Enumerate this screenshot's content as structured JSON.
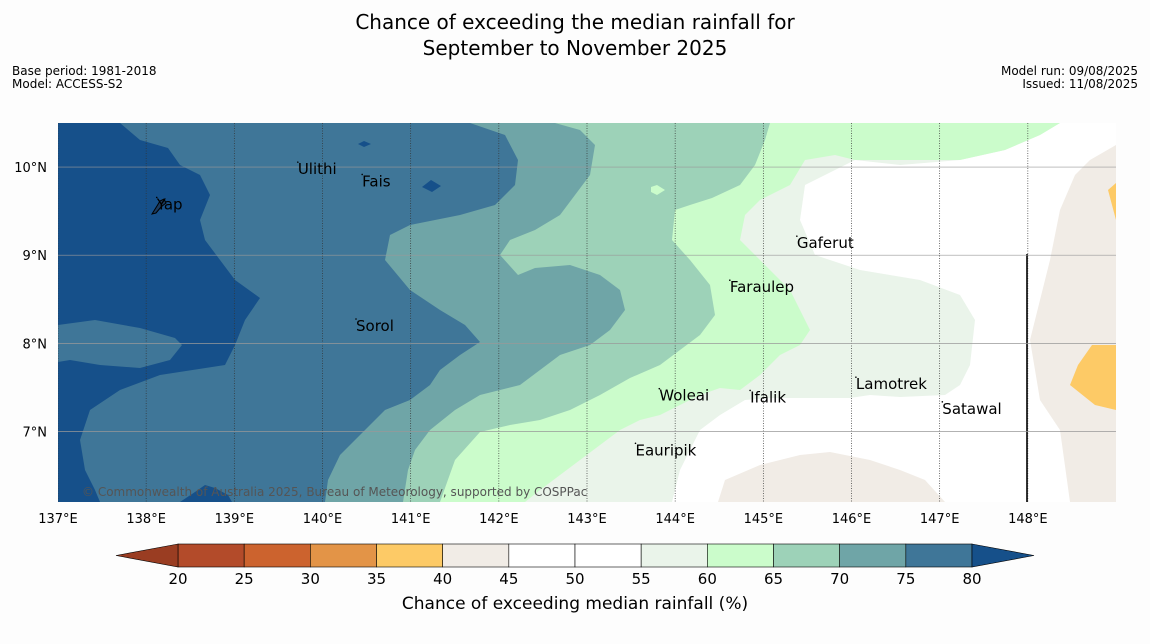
{
  "title": {
    "line1": "Chance of exceeding the median rainfall for",
    "line2": "September to November 2025"
  },
  "meta_left": {
    "base_period": "Base period: 1981-2018",
    "model": "Model: ACCESS-S2"
  },
  "meta_right": {
    "model_run": "Model run: 09/08/2025",
    "issued": "Issued: 11/08/2025"
  },
  "copyright": "© Commonwealth of Australia 2025, Bureau of Meteorology, supported by COSPPac",
  "map": {
    "lon_range": [
      137.0,
      149.0
    ],
    "lat_range": [
      6.2,
      10.5
    ],
    "lon_ticks": [
      {
        "value": 137,
        "label": "137°E"
      },
      {
        "value": 138,
        "label": "138°E"
      },
      {
        "value": 139,
        "label": "139°E"
      },
      {
        "value": 140,
        "label": "140°E"
      },
      {
        "value": 141,
        "label": "141°E"
      },
      {
        "value": 142,
        "label": "142°E"
      },
      {
        "value": 143,
        "label": "143°E"
      },
      {
        "value": 144,
        "label": "144°E"
      },
      {
        "value": 145,
        "label": "145°E"
      },
      {
        "value": 146,
        "label": "146°E"
      },
      {
        "value": 147,
        "label": "147°E"
      },
      {
        "value": 148,
        "label": "148°E"
      }
    ],
    "lat_ticks": [
      {
        "value": 10,
        "label": "10°N"
      },
      {
        "value": 9,
        "label": "9°N"
      },
      {
        "value": 8,
        "label": "8°N"
      },
      {
        "value": 7,
        "label": "7°N"
      }
    ],
    "places": [
      {
        "name": "Ulithi",
        "lon": 139.72,
        "lat": 9.92
      },
      {
        "name": "Fais",
        "lon": 140.45,
        "lat": 9.78
      },
      {
        "name": "Yap",
        "lon": 138.12,
        "lat": 9.52
      },
      {
        "name": "Gaferut",
        "lon": 145.38,
        "lat": 9.08
      },
      {
        "name": "Faraulep",
        "lon": 144.62,
        "lat": 8.58
      },
      {
        "name": "Sorol",
        "lon": 140.38,
        "lat": 8.14
      },
      {
        "name": "Lamotrek",
        "lon": 146.05,
        "lat": 7.48
      },
      {
        "name": "Woleai",
        "lon": 143.82,
        "lat": 7.35
      },
      {
        "name": "Ifalik",
        "lon": 144.85,
        "lat": 7.33
      },
      {
        "name": "Satawal",
        "lon": 147.03,
        "lat": 7.2
      },
      {
        "name": "Eauripik",
        "lon": 143.55,
        "lat": 6.73
      }
    ]
  },
  "colorbar": {
    "label": "Chance of exceeding median rainfall (%)",
    "ticks": [
      "20",
      "25",
      "30",
      "35",
      "40",
      "45",
      "50",
      "55",
      "60",
      "65",
      "70",
      "75",
      "80"
    ],
    "colors": [
      "#b34b2a",
      "#cc632e",
      "#e39447",
      "#fdca66",
      "#f1ece6",
      "#ffffff",
      "#ffffff",
      "#eaf4ea",
      "#cbfccb",
      "#9dd2b8",
      "#6fa5a7",
      "#3f7698"
    ],
    "under_color": "#9a3d22",
    "over_color": "#16508a"
  }
}
